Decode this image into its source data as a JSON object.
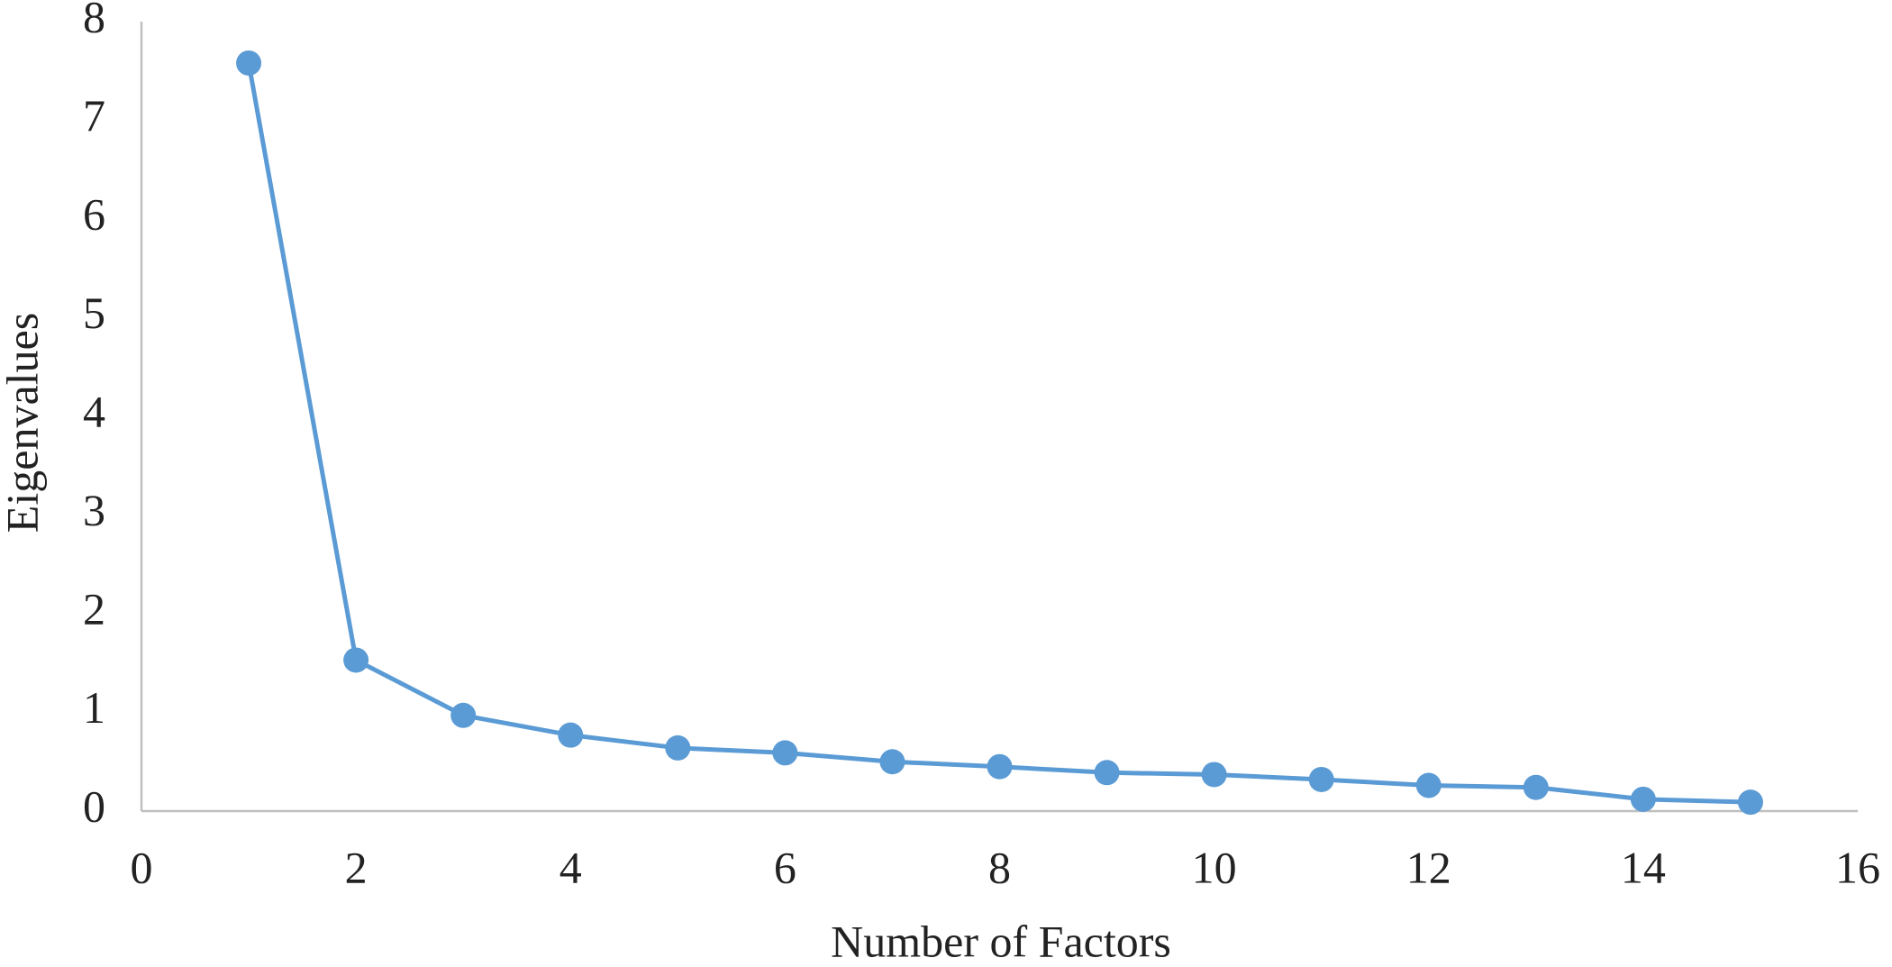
{
  "chart_data": {
    "type": "line",
    "x_label": "Number of Factors",
    "y_label": "Eigenvalues",
    "x": [
      1,
      2,
      3,
      4,
      5,
      6,
      7,
      8,
      9,
      10,
      11,
      12,
      13,
      14,
      15
    ],
    "values": [
      7.58,
      1.53,
      0.97,
      0.77,
      0.64,
      0.59,
      0.5,
      0.45,
      0.39,
      0.37,
      0.32,
      0.26,
      0.24,
      0.12,
      0.09
    ],
    "color": "#5b9bd5",
    "xlim": [
      0,
      16
    ],
    "xticks": [
      0,
      2,
      4,
      6,
      8,
      10,
      12,
      14,
      16
    ],
    "ylim": [
      0,
      8
    ],
    "yticks": [
      0,
      1,
      2,
      3,
      4,
      5,
      6,
      7,
      8
    ],
    "grid": false
  }
}
